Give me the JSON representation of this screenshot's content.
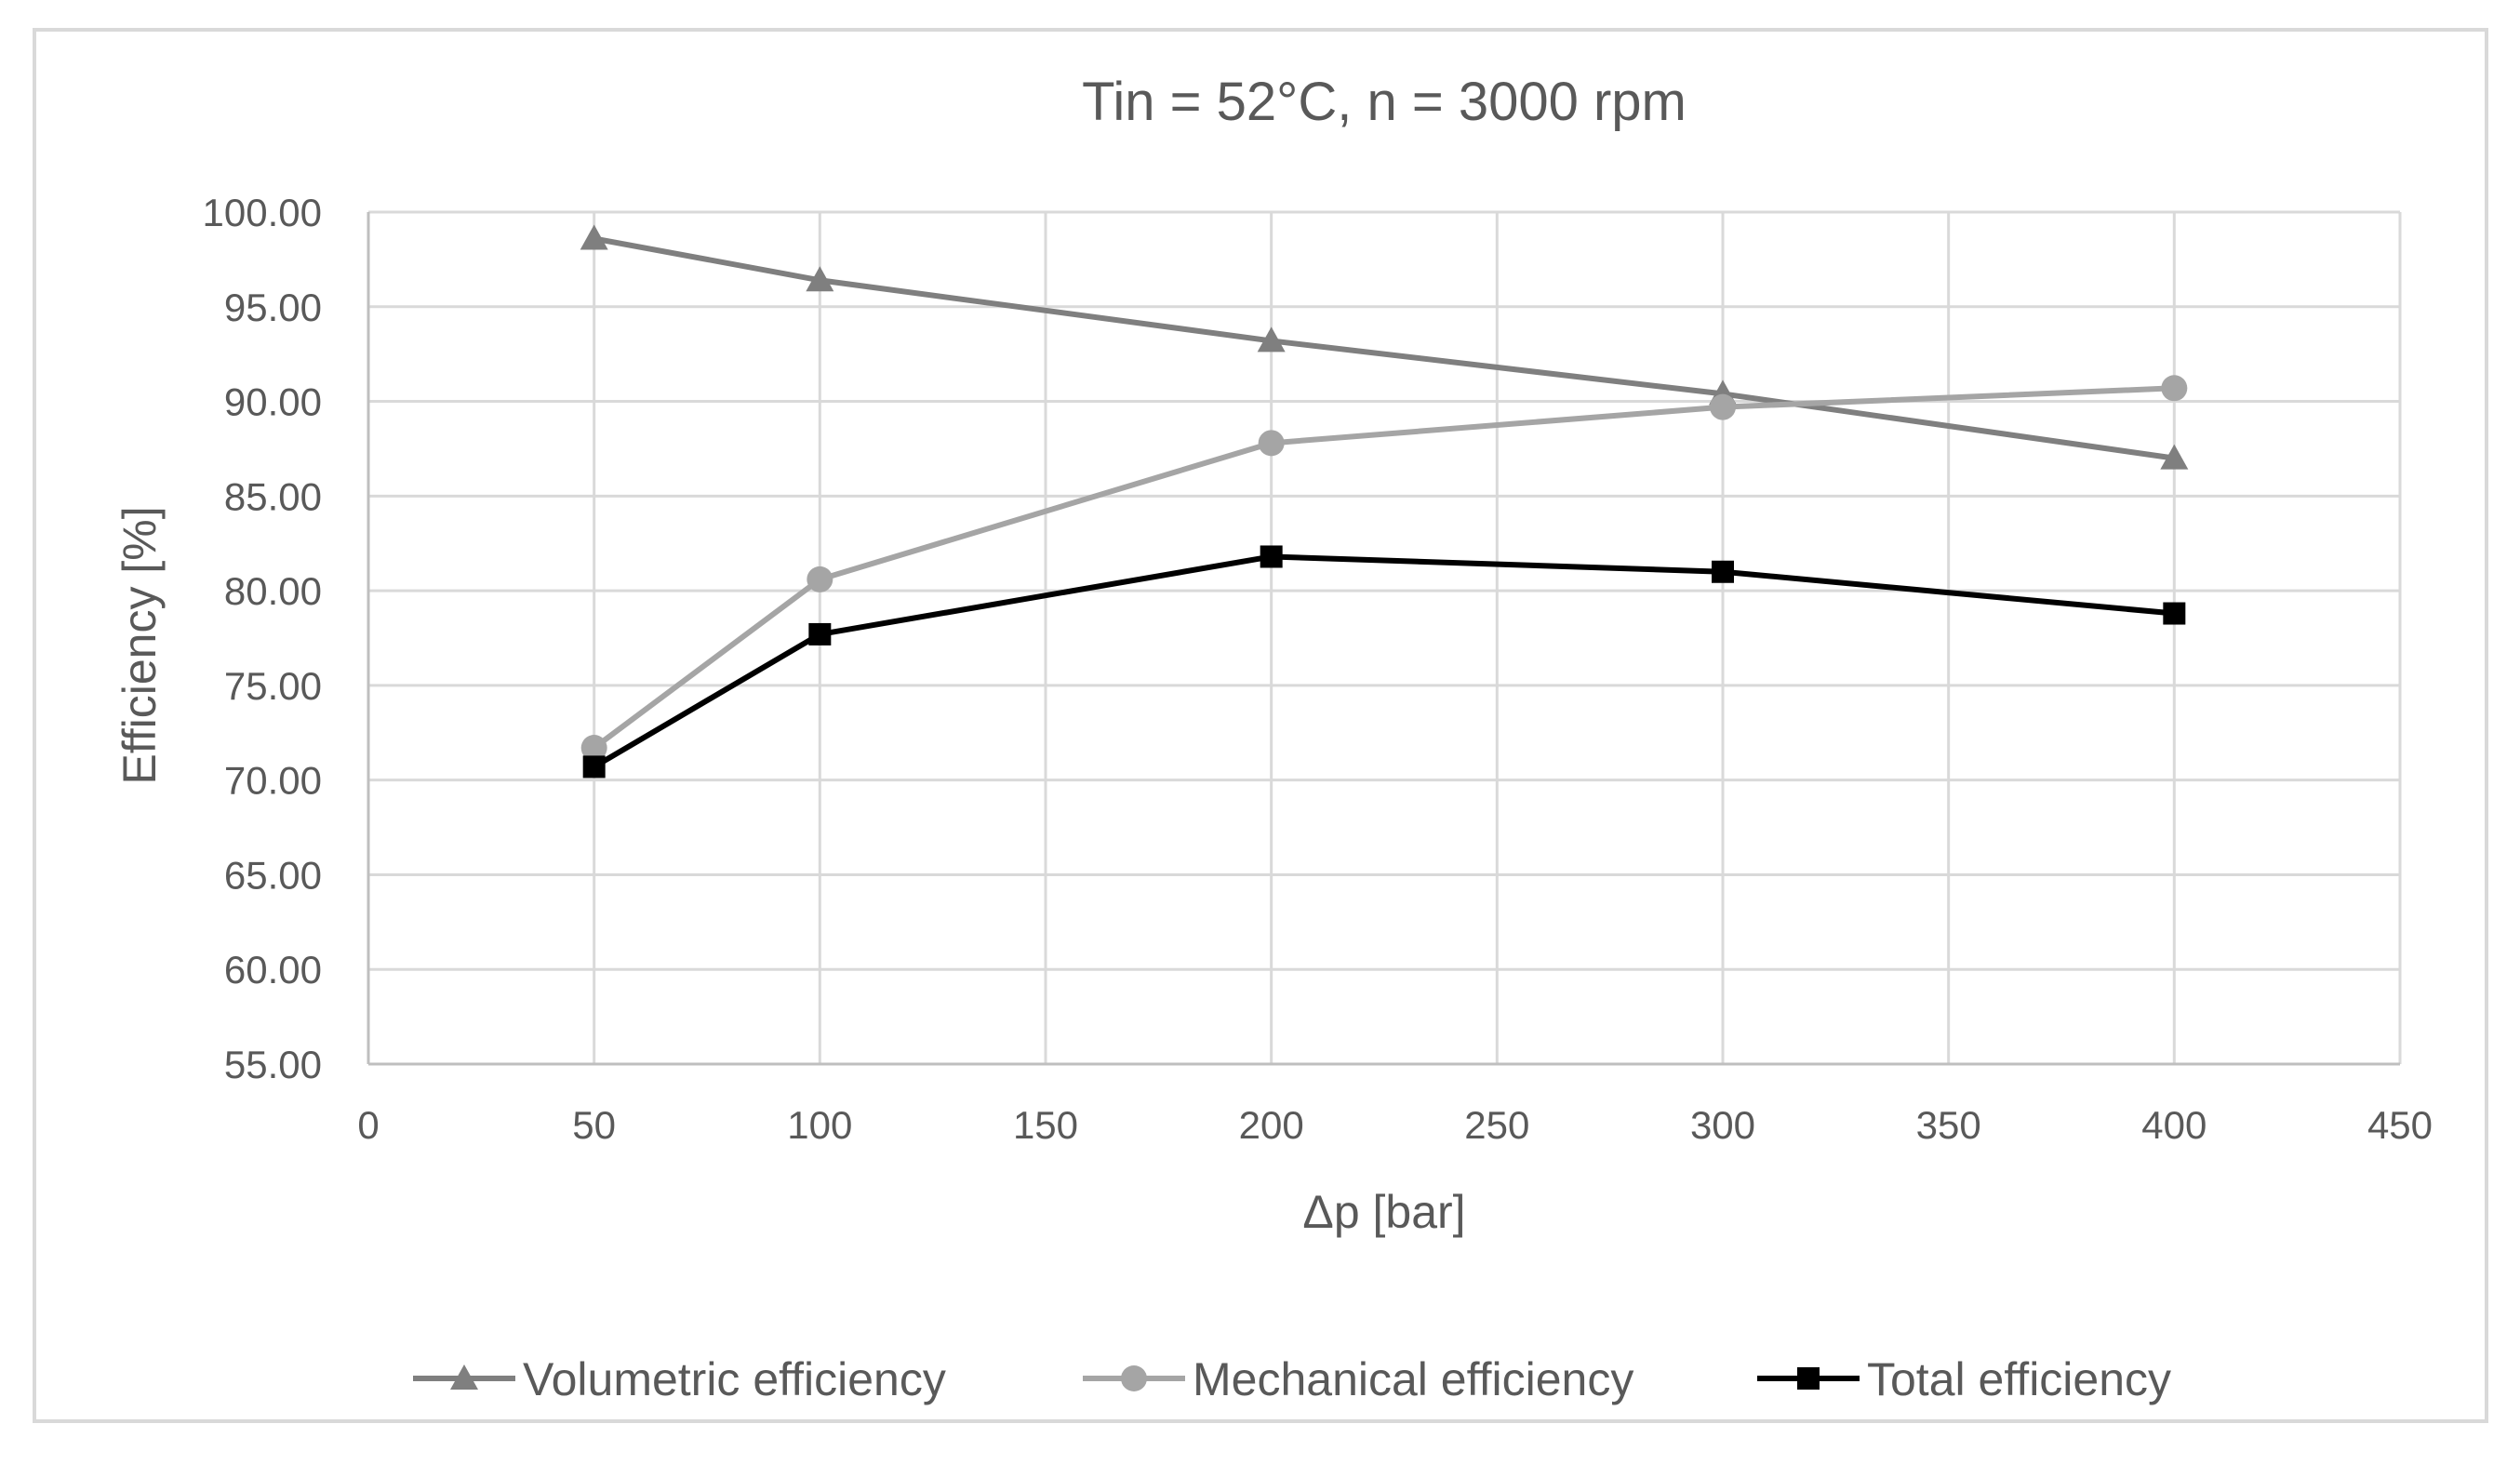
{
  "chart_data": {
    "type": "line",
    "title": "Tin = 52°C, n = 3000 rpm",
    "xlabel": "Δp [bar]",
    "ylabel": "Efficiency [%]",
    "xlim": [
      0,
      450
    ],
    "ylim": [
      55,
      100
    ],
    "x_ticks": [
      "0",
      "50",
      "100",
      "150",
      "200",
      "250",
      "300",
      "350",
      "400",
      "450"
    ],
    "y_ticks": [
      "55.00",
      "60.00",
      "65.00",
      "70.00",
      "75.00",
      "80.00",
      "85.00",
      "90.00",
      "95.00",
      "100.00"
    ],
    "grid": true,
    "legend_position": "bottom",
    "x": [
      50,
      100,
      200,
      300,
      400
    ],
    "series": [
      {
        "name": "Volumetric efficiency",
        "values": [
          98.6,
          96.4,
          93.2,
          90.4,
          87.0
        ],
        "color": "#7f7f7f",
        "marker": "triangle"
      },
      {
        "name": "Mechanical efficiency",
        "values": [
          71.7,
          80.6,
          87.8,
          89.7,
          90.7
        ],
        "color": "#a5a5a5",
        "marker": "circle"
      },
      {
        "name": "Total efficiency",
        "values": [
          70.7,
          77.7,
          81.8,
          81.0,
          78.8
        ],
        "color": "#000000",
        "marker": "square"
      }
    ]
  }
}
